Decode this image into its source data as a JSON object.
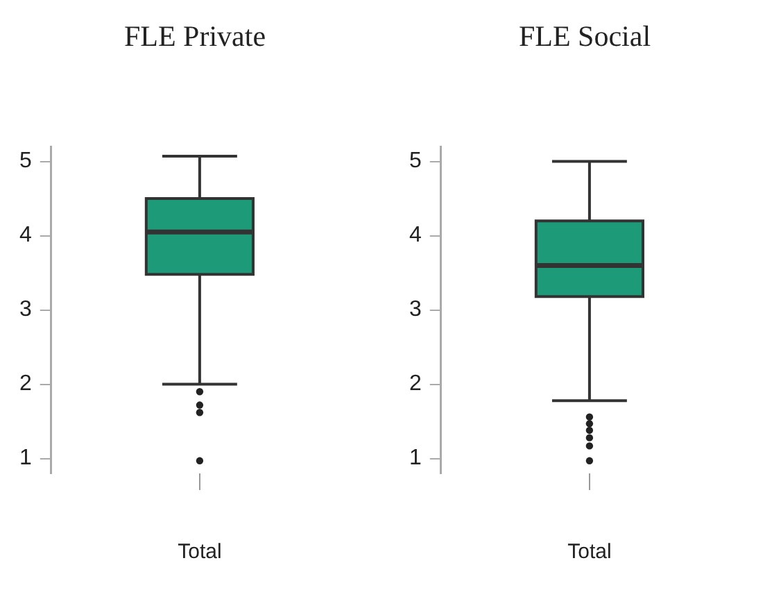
{
  "chart_data": [
    {
      "type": "box",
      "title": "FLE Private",
      "categories": [
        "Total"
      ],
      "color": "#1d9a78",
      "boxes": [
        {
          "low": 2.0,
          "q1": 3.48,
          "median": 4.05,
          "q3": 4.5,
          "high": 5.07,
          "outliers": [
            1.9,
            1.72,
            1.62,
            0.97
          ]
        }
      ],
      "ylim": [
        0.8,
        5.2
      ],
      "yticks": [
        1,
        2,
        3,
        4,
        5
      ],
      "grid": false,
      "legend": false
    },
    {
      "type": "box",
      "title": "FLE Social",
      "categories": [
        "Total"
      ],
      "color": "#1d9a78",
      "boxes": [
        {
          "low": 1.78,
          "q1": 3.18,
          "median": 3.6,
          "q3": 4.2,
          "high": 5.0,
          "outliers": [
            1.56,
            1.47,
            1.38,
            1.28,
            1.17,
            0.97
          ]
        }
      ],
      "ylim": [
        0.8,
        5.2
      ],
      "yticks": [
        1,
        2,
        3,
        4,
        5
      ],
      "grid": false,
      "legend": false
    }
  ]
}
